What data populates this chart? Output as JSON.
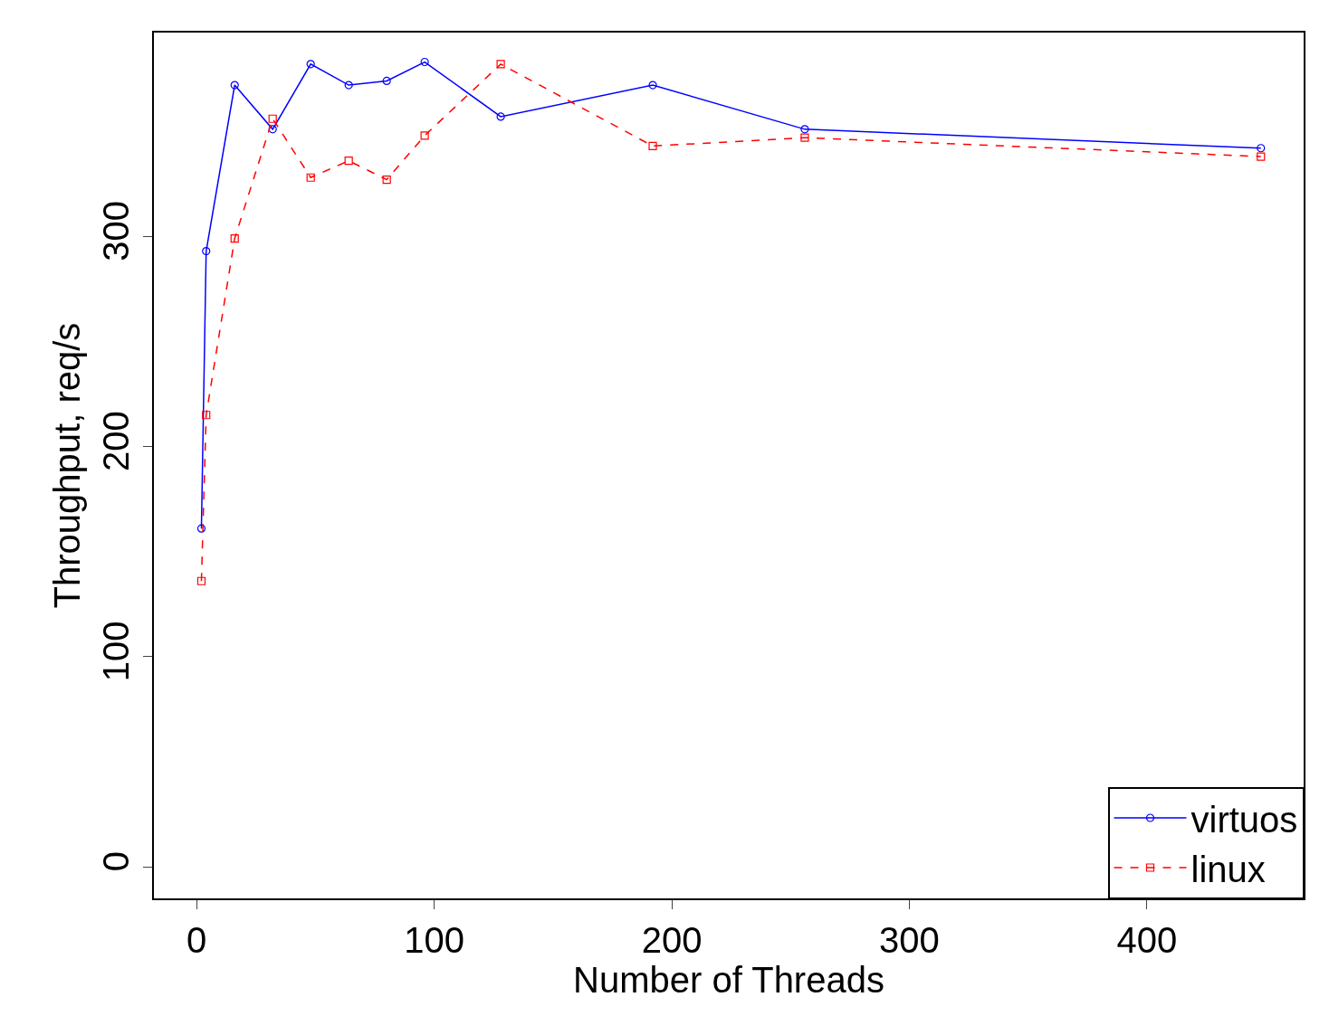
{
  "chart_data": {
    "type": "line",
    "xlabel": "Number of Threads",
    "ylabel": "Throughput, req/s",
    "xlim": [
      -18,
      466
    ],
    "ylim": [
      -15,
      397
    ],
    "xticks": [
      0,
      100,
      200,
      300,
      400
    ],
    "yticks": [
      0,
      100,
      200,
      300
    ],
    "legend": "bottom right",
    "series": [
      {
        "name": "virtuos",
        "color": "#0000ff",
        "marker": "circle",
        "line_style": "solid",
        "x": [
          2,
          4,
          16,
          32,
          48,
          64,
          80,
          96,
          128,
          192,
          256,
          448
        ],
        "values": [
          161,
          293,
          372,
          351,
          382,
          372,
          374,
          383,
          357,
          372,
          351,
          342
        ]
      },
      {
        "name": "linux",
        "color": "#ff0000",
        "marker": "square",
        "line_style": "dashed",
        "x": [
          2,
          4,
          16,
          32,
          48,
          64,
          80,
          96,
          128,
          192,
          256,
          448
        ],
        "values": [
          136,
          215,
          299,
          356,
          328,
          336,
          327,
          348,
          382,
          343,
          347,
          338
        ]
      }
    ]
  }
}
